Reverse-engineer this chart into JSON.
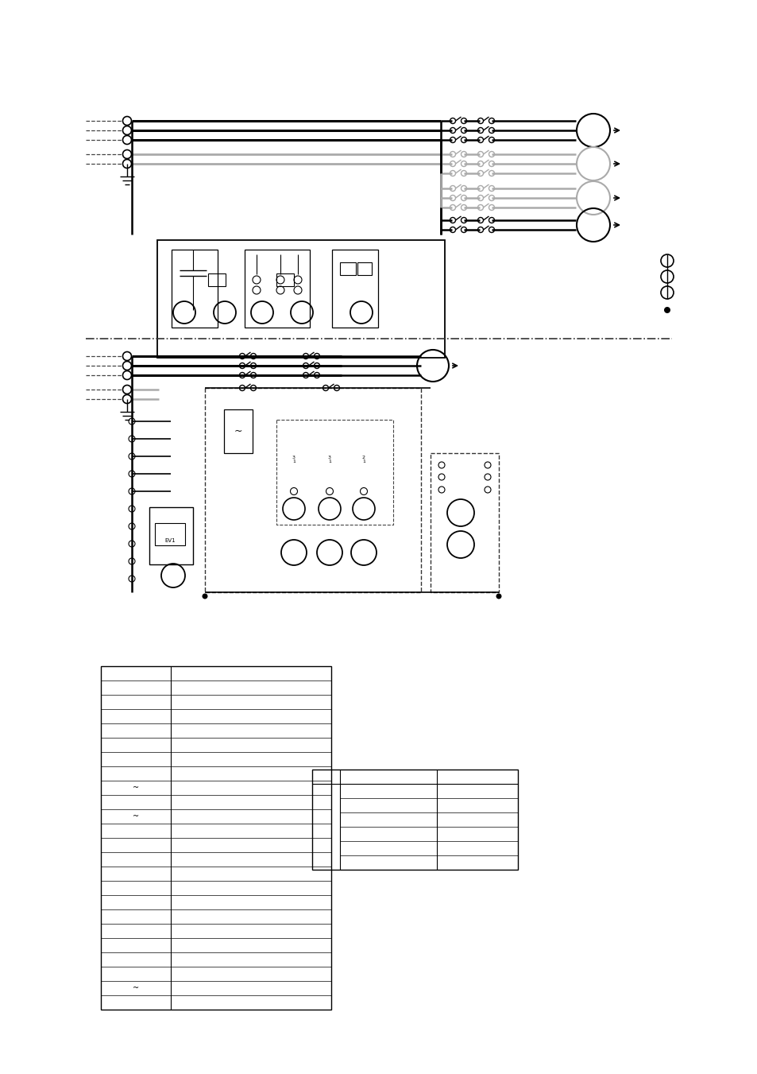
{
  "bg_color": "#ffffff",
  "line_color": "#000000",
  "gray_color": "#aaaaaa",
  "fig_width": 9.54,
  "fig_height": 13.51,
  "dpi": 100
}
